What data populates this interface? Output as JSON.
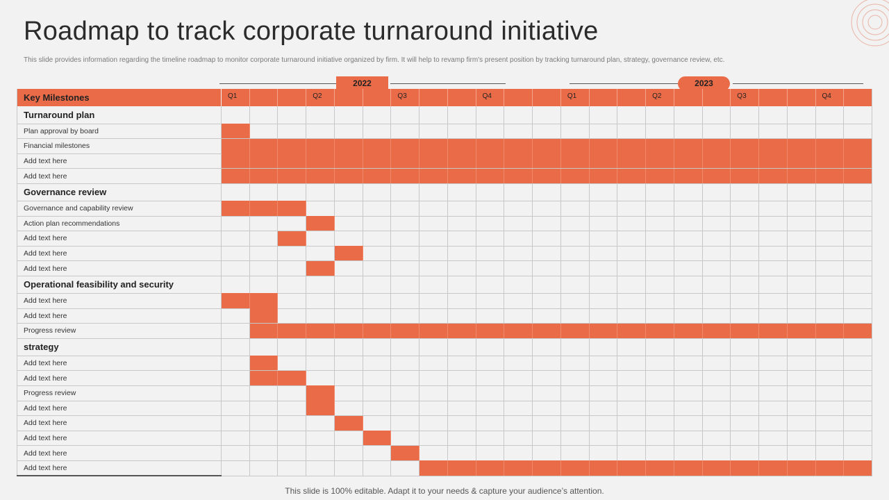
{
  "title": "Roadmap to track corporate turnaround initiative",
  "subtitle": "This slide provides information regarding the timeline  roadmap to monitor  corporate turnaround initiative organized by firm. It  will help to revamp firm's present position by tracking turnaround plan, strategy, governance review, etc.",
  "footer": "This slide is 100% editable. Adapt it to your needs & capture your audience’s attention.",
  "accent_color": "#ea6b48",
  "years": [
    "2022",
    "2023"
  ],
  "header_label": "Key Milestones",
  "quarter_marks": [
    {
      "col": 0,
      "label": "Q1"
    },
    {
      "col": 3,
      "label": "Q2"
    },
    {
      "col": 6,
      "label": "Q3"
    },
    {
      "col": 9,
      "label": "Q4"
    },
    {
      "col": 12,
      "label": "Q1"
    },
    {
      "col": 15,
      "label": "Q2"
    },
    {
      "col": 18,
      "label": "Q3"
    },
    {
      "col": 21,
      "label": "Q4"
    }
  ],
  "columns_count": 23,
  "sections": [
    {
      "name": "Turnaround plan",
      "items": [
        {
          "label": "Plan approval by board",
          "filled": [
            [
              0,
              0
            ]
          ]
        },
        {
          "label": "Financial milestones",
          "filled": [
            [
              0,
              22
            ]
          ]
        },
        {
          "label": "Add text here",
          "filled": [
            [
              0,
              22
            ]
          ]
        },
        {
          "label": "Add text here",
          "filled": [
            [
              0,
              22
            ]
          ]
        }
      ]
    },
    {
      "name": "Governance review",
      "items": [
        {
          "label": "Governance and capability review",
          "filled": [
            [
              0,
              2
            ]
          ]
        },
        {
          "label": "Action plan recommendations",
          "filled": [
            [
              3,
              3
            ]
          ]
        },
        {
          "label": "Add text here",
          "filled": [
            [
              2,
              2
            ]
          ]
        },
        {
          "label": "Add text here",
          "filled": [
            [
              4,
              4
            ]
          ]
        },
        {
          "label": "Add text here",
          "filled": [
            [
              3,
              3
            ]
          ]
        }
      ]
    },
    {
      "name": "Operational feasibility and security",
      "items": [
        {
          "label": "Add text here",
          "filled": [
            [
              0,
              1
            ]
          ]
        },
        {
          "label": "Add text here",
          "filled": [
            [
              1,
              1
            ]
          ]
        },
        {
          "label": "Progress review",
          "filled": [
            [
              1,
              22
            ]
          ]
        }
      ]
    },
    {
      "name": "strategy",
      "items": [
        {
          "label": "Add text here",
          "filled": [
            [
              1,
              1
            ]
          ]
        },
        {
          "label": "Add text here",
          "filled": [
            [
              1,
              2
            ]
          ]
        },
        {
          "label": "Progress review",
          "filled": [
            [
              3,
              3
            ]
          ]
        },
        {
          "label": "Add text here",
          "filled": [
            [
              3,
              3
            ]
          ]
        },
        {
          "label": "Add text here",
          "filled": [
            [
              4,
              4
            ]
          ]
        },
        {
          "label": "Add text here",
          "filled": [
            [
              5,
              5
            ]
          ]
        },
        {
          "label": "Add text here",
          "filled": [
            [
              6,
              6
            ]
          ]
        },
        {
          "label": "Add text here",
          "filled": [
            [
              7,
              22
            ]
          ]
        }
      ]
    }
  ]
}
